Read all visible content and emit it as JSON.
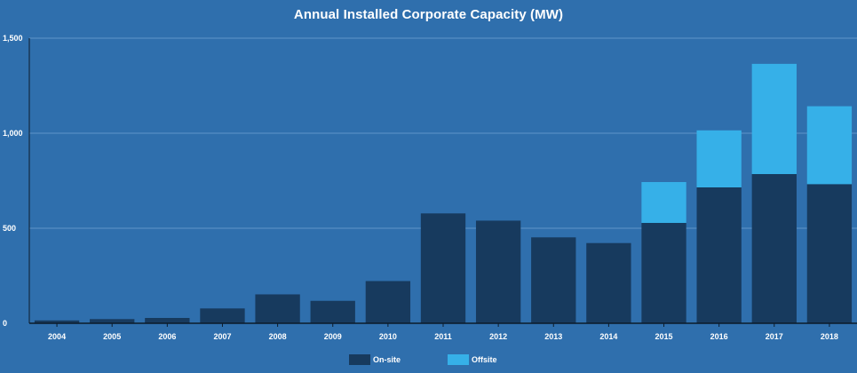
{
  "chart_data": {
    "type": "bar",
    "stacked": true,
    "title": "Annual Installed Corporate Capacity (MW)",
    "categories": [
      "2004",
      "2005",
      "2006",
      "2007",
      "2008",
      "2009",
      "2010",
      "2011",
      "2012",
      "2013",
      "2014",
      "2015",
      "2016",
      "2017",
      "2018"
    ],
    "series": [
      {
        "name": "On-site",
        "color": "#173a5e",
        "values": [
          15,
          22,
          28,
          78,
          152,
          118,
          222,
          578,
          540,
          452,
          422,
          528,
          715,
          785,
          732
        ]
      },
      {
        "name": "Offsite",
        "color": "#36b0e8",
        "values": [
          0,
          0,
          0,
          0,
          0,
          0,
          0,
          0,
          0,
          0,
          0,
          215,
          300,
          580,
          410
        ]
      }
    ],
    "ylim": [
      0,
      1500
    ],
    "yticks": [
      0,
      500,
      1000,
      1500
    ],
    "ytick_labels": [
      "0",
      "500",
      "1,000",
      "1,500"
    ],
    "grid": true,
    "legend_position": "bottom",
    "background_color": "#2f6fad",
    "grid_color": "#5f94c9",
    "axis_color": "#0c1b2a"
  }
}
